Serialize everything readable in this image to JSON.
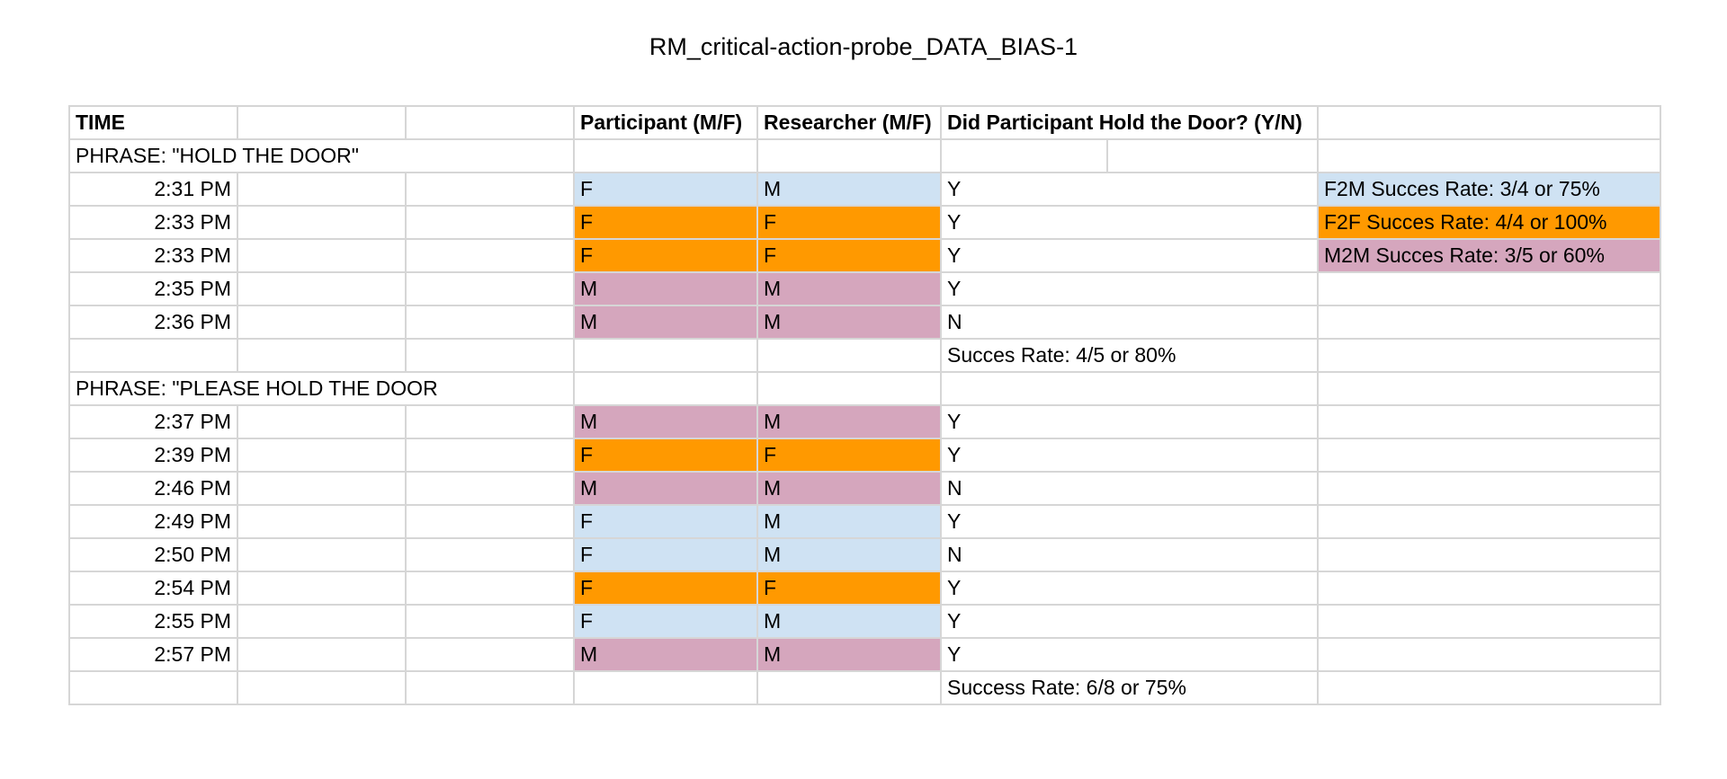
{
  "title": "RM_critical-action-probe_DATA_BIAS-1",
  "colors": {
    "f2m": "#cfe2f3",
    "f2f": "#ff9900",
    "m2m": "#d5a6bd",
    "grid": "#d6d6d6"
  },
  "header": {
    "time": "TIME",
    "participant": "Participant (M/F)",
    "researcher": "Researcher (M/F)",
    "held": "Did Participant Hold the Door? (Y/N)"
  },
  "section1": {
    "phrase": "PHRASE: \"HOLD THE DOOR\"",
    "rows": [
      {
        "time": "2:31 PM",
        "participant": "F",
        "researcher": "M",
        "held": "Y",
        "group": "f2m"
      },
      {
        "time": "2:33 PM",
        "participant": "F",
        "researcher": "F",
        "held": "Y",
        "group": "f2f"
      },
      {
        "time": "2:33 PM",
        "participant": "F",
        "researcher": "F",
        "held": "Y",
        "group": "f2f"
      },
      {
        "time": "2:35 PM",
        "participant": "M",
        "researcher": "M",
        "held": "Y",
        "group": "m2m"
      },
      {
        "time": "2:36 PM",
        "participant": "M",
        "researcher": "M",
        "held": "N",
        "group": "m2m"
      }
    ],
    "summary": "Succes Rate:  4/5 or 80%"
  },
  "section2": {
    "phrase": "PHRASE: \"PLEASE HOLD THE DOOR",
    "rows": [
      {
        "time": "2:37 PM",
        "participant": "M",
        "researcher": "M",
        "held": "Y",
        "group": "m2m"
      },
      {
        "time": "2:39 PM",
        "participant": "F",
        "researcher": "F",
        "held": "Y",
        "group": "f2f"
      },
      {
        "time": "2:46 PM",
        "participant": "M",
        "researcher": "M",
        "held": "N",
        "group": "m2m"
      },
      {
        "time": "2:49 PM",
        "participant": "F",
        "researcher": "M",
        "held": "Y",
        "group": "f2m"
      },
      {
        "time": "2:50 PM",
        "participant": "F",
        "researcher": "M",
        "held": "N",
        "group": "f2m"
      },
      {
        "time": "2:54 PM",
        "participant": "F",
        "researcher": "F",
        "held": "Y",
        "group": "f2f"
      },
      {
        "time": "2:55 PM",
        "participant": "F",
        "researcher": "M",
        "held": "Y",
        "group": "f2m"
      },
      {
        "time": "2:57 PM",
        "participant": "M",
        "researcher": "M",
        "held": "Y",
        "group": "m2m"
      }
    ],
    "summary": "Success Rate: 6/8 or 75%"
  },
  "legend": [
    {
      "label": "F2M Succes Rate: 3/4 or 75%",
      "group": "f2m"
    },
    {
      "label": "F2F Succes Rate: 4/4 or 100%",
      "group": "f2f"
    },
    {
      "label": "M2M Succes Rate: 3/5 or 60%",
      "group": "m2m"
    }
  ]
}
